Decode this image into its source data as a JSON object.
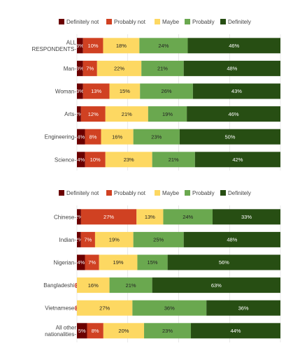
{
  "colors": [
    "#6b0000",
    "#d04122",
    "#fdd862",
    "#6aa84f",
    "#274e13"
  ],
  "label_colors": [
    "#ffffff",
    "#ffffff",
    "#222222",
    "#222222",
    "#ffffff"
  ],
  "chart_data": [
    {
      "type": "bar",
      "orientation": "horizontal",
      "stacked": true,
      "legend_position": "top",
      "xlim": [
        0,
        100
      ],
      "grid": true,
      "categories": [
        [
          "ALL",
          "RESPONDENTS"
        ],
        [
          "Man"
        ],
        [
          "Woman"
        ],
        [
          "Arts"
        ],
        [
          "Engineering"
        ],
        [
          "Science"
        ]
      ],
      "series": [
        {
          "name": "Definitely not",
          "values": [
            3,
            3,
            3,
            2,
            4,
            4
          ],
          "labels": [
            "3%",
            "3%",
            "3%",
            "2%",
            "4%",
            "4%"
          ]
        },
        {
          "name": "Probably not",
          "values": [
            10,
            7,
            13,
            12,
            8,
            10
          ],
          "labels": [
            "10%",
            "7%",
            "13%",
            "12%",
            "8%",
            "10%"
          ]
        },
        {
          "name": "Maybe",
          "values": [
            18,
            22,
            15,
            21,
            16,
            23
          ],
          "labels": [
            "18%",
            "22%",
            "15%",
            "21%",
            "16%",
            "23%"
          ]
        },
        {
          "name": "Probably",
          "values": [
            24,
            21,
            26,
            19,
            23,
            21
          ],
          "labels": [
            "24%",
            "21%",
            "26%",
            "19%",
            "23%",
            "21%"
          ]
        },
        {
          "name": "Definitely",
          "values": [
            46,
            48,
            43,
            46,
            50,
            42
          ],
          "labels": [
            "46%",
            "48%",
            "43%",
            "46%",
            "50%",
            "42%"
          ]
        }
      ]
    },
    {
      "type": "bar",
      "orientation": "horizontal",
      "stacked": true,
      "legend_position": "top",
      "xlim": [
        0,
        100
      ],
      "grid": true,
      "categories": [
        [
          "Chinese"
        ],
        [
          "Indian"
        ],
        [
          "Nigerian"
        ],
        [
          "Bangladeshi"
        ],
        [
          "Vietnamese"
        ],
        [
          "All other",
          "nationalities"
        ]
      ],
      "series": [
        {
          "name": "Definitely not",
          "values": [
            2,
            2,
            4,
            0,
            0,
            5
          ],
          "labels": [
            "2%",
            "2%",
            "4%",
            "0%",
            "0%",
            "5%"
          ]
        },
        {
          "name": "Probably not",
          "values": [
            27,
            7,
            7,
            0,
            0,
            8
          ],
          "labels": [
            "27%",
            "7%",
            "7%",
            "0%",
            "0%",
            "8%"
          ]
        },
        {
          "name": "Maybe",
          "values": [
            13,
            19,
            19,
            16,
            27,
            20
          ],
          "labels": [
            "13%",
            "19%",
            "19%",
            "16%",
            "27%",
            "20%"
          ]
        },
        {
          "name": "Probably",
          "values": [
            24,
            25,
            15,
            21,
            36,
            23
          ],
          "labels": [
            "24%",
            "25%",
            "15%",
            "21%",
            "36%",
            "23%"
          ]
        },
        {
          "name": "Definitely",
          "values": [
            33,
            48,
            56,
            63,
            36,
            44
          ],
          "labels": [
            "33%",
            "48%",
            "56%",
            "63%",
            "36%",
            "44%"
          ]
        }
      ]
    }
  ]
}
